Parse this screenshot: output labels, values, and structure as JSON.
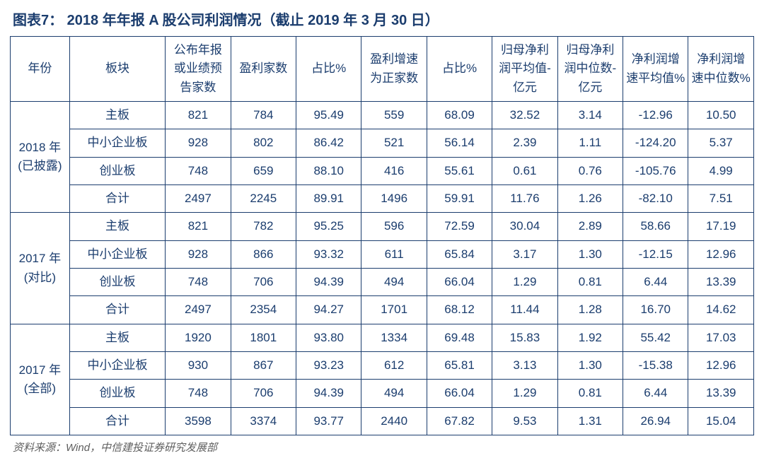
{
  "title": "图表7：  2018 年年报 A 股公司利润情况（截止 2019 年 3 月 30 日）",
  "headers": {
    "year": "年份",
    "board": "板块",
    "count_disclosed": "公布年报或业绩预告家数",
    "profit_count": "盈利家数",
    "profit_ratio": "占比%",
    "growth_pos_count": "盈利增速为正家数",
    "growth_pos_ratio": "占比%",
    "avg_profit": "归母净利润平均值-亿元",
    "median_profit": "归母净利润中位数-亿元",
    "avg_growth": "净利润增速平均值%",
    "median_growth": "净利润增速中位数%"
  },
  "groups": [
    {
      "year_label": "2018 年\n(已披露)",
      "rows": [
        {
          "board": "主板",
          "c1": "821",
          "c2": "784",
          "c3": "95.49",
          "c4": "559",
          "c5": "68.09",
          "c6": "32.52",
          "c7": "3.14",
          "c8": "-12.96",
          "c9": "10.50"
        },
        {
          "board": "中小企业板",
          "c1": "928",
          "c2": "802",
          "c3": "86.42",
          "c4": "521",
          "c5": "56.14",
          "c6": "2.39",
          "c7": "1.11",
          "c8": "-124.20",
          "c9": "5.37"
        },
        {
          "board": "创业板",
          "c1": "748",
          "c2": "659",
          "c3": "88.10",
          "c4": "416",
          "c5": "55.61",
          "c6": "0.61",
          "c7": "0.76",
          "c8": "-105.76",
          "c9": "4.99"
        },
        {
          "board": "合计",
          "c1": "2497",
          "c2": "2245",
          "c3": "89.91",
          "c4": "1496",
          "c5": "59.91",
          "c6": "11.76",
          "c7": "1.26",
          "c8": "-82.10",
          "c9": "7.51"
        }
      ]
    },
    {
      "year_label": "2017 年\n(对比)",
      "rows": [
        {
          "board": "主板",
          "c1": "821",
          "c2": "782",
          "c3": "95.25",
          "c4": "596",
          "c5": "72.59",
          "c6": "30.04",
          "c7": "2.89",
          "c8": "58.66",
          "c9": "17.19"
        },
        {
          "board": "中小企业板",
          "c1": "928",
          "c2": "866",
          "c3": "93.32",
          "c4": "611",
          "c5": "65.84",
          "c6": "3.17",
          "c7": "1.30",
          "c8": "-12.15",
          "c9": "12.96"
        },
        {
          "board": "创业板",
          "c1": "748",
          "c2": "706",
          "c3": "94.39",
          "c4": "494",
          "c5": "66.04",
          "c6": "1.29",
          "c7": "0.81",
          "c8": "6.44",
          "c9": "13.39"
        },
        {
          "board": "合计",
          "c1": "2497",
          "c2": "2354",
          "c3": "94.27",
          "c4": "1701",
          "c5": "68.12",
          "c6": "11.44",
          "c7": "1.28",
          "c8": "16.70",
          "c9": "14.62"
        }
      ]
    },
    {
      "year_label": "2017 年\n(全部)",
      "rows": [
        {
          "board": "主板",
          "c1": "1920",
          "c2": "1801",
          "c3": "93.80",
          "c4": "1334",
          "c5": "69.48",
          "c6": "15.83",
          "c7": "1.92",
          "c8": "55.42",
          "c9": "17.03"
        },
        {
          "board": "中小企业板",
          "c1": "930",
          "c2": "867",
          "c3": "93.23",
          "c4": "612",
          "c5": "65.81",
          "c6": "3.13",
          "c7": "1.30",
          "c8": "-15.38",
          "c9": "12.96"
        },
        {
          "board": "创业板",
          "c1": "748",
          "c2": "706",
          "c3": "94.39",
          "c4": "494",
          "c5": "66.04",
          "c6": "1.29",
          "c7": "0.81",
          "c8": "6.44",
          "c9": "13.39"
        },
        {
          "board": "合计",
          "c1": "3598",
          "c2": "3374",
          "c3": "93.77",
          "c4": "2440",
          "c5": "67.82",
          "c6": "9.53",
          "c7": "1.31",
          "c8": "26.94",
          "c9": "15.04"
        }
      ]
    }
  ],
  "source": "资料来源：Wind，中信建投证券研究发展部",
  "style": {
    "border_color": "#1b3d6e",
    "text_color": "#1b3d6e",
    "title_color": "#1b3d6e",
    "source_color": "#5f5f5f",
    "background": "#ffffff",
    "title_fontsize": 20,
    "cell_fontsize": 17,
    "source_fontsize": 15
  }
}
